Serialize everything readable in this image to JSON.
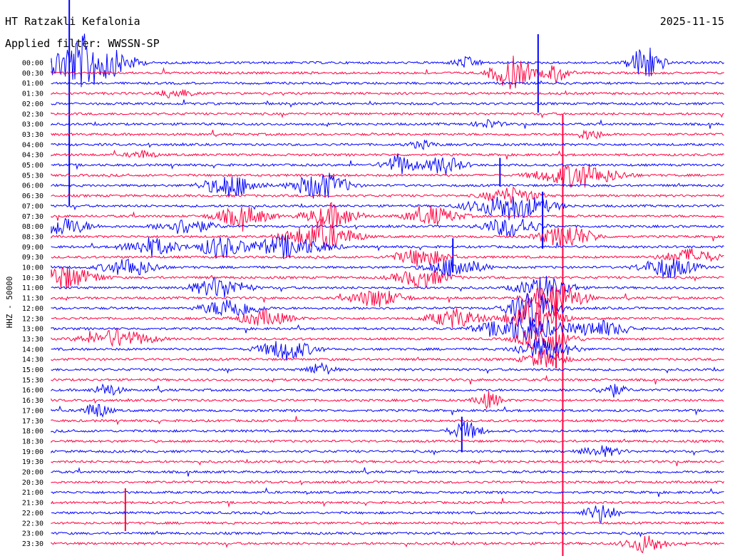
{
  "header": {
    "station": "HT Ratzakli Kefalonia",
    "date": "2025-11-15",
    "filter": "Applied filter: WWSSN-SP"
  },
  "channel_label": "HHZ - 50000",
  "colors": {
    "line_a": "#0000ff",
    "line_b": "#ff0040",
    "text": "#000000",
    "background": "#ffffff"
  },
  "chart_data": {
    "type": "line",
    "title": "HT Ratzakli Kefalonia",
    "ylabel": "HHZ - 50000",
    "rows": [
      "00:00",
      "00:30",
      "01:00",
      "01:30",
      "02:00",
      "02:30",
      "03:00",
      "03:30",
      "04:00",
      "04:30",
      "05:00",
      "05:30",
      "06:00",
      "06:30",
      "07:00",
      "07:30",
      "08:00",
      "08:30",
      "09:00",
      "09:30",
      "10:00",
      "10:30",
      "11:00",
      "11:30",
      "12:00",
      "12:30",
      "13:00",
      "13:30",
      "14:00",
      "14:30",
      "15:00",
      "15:30",
      "16:00",
      "16:30",
      "17:00",
      "17:30",
      "18:00",
      "18:30",
      "19:00",
      "19:30",
      "20:00",
      "20:30",
      "21:00",
      "21:30",
      "22:00",
      "22:30",
      "23:00",
      "23:30"
    ],
    "row_minutes": 30,
    "events": [
      {
        "row": 0,
        "minute": 1.5,
        "amp": 40,
        "dur": 3
      },
      {
        "row": 0,
        "minute": 18.5,
        "amp": 8,
        "dur": 1
      },
      {
        "row": 0,
        "minute": 26.5,
        "amp": 30,
        "dur": 1.2
      },
      {
        "row": 1,
        "minute": 20.5,
        "amp": 25,
        "dur": 1.5
      },
      {
        "row": 1,
        "minute": 22.5,
        "amp": 14,
        "dur": 1
      },
      {
        "row": 3,
        "minute": 5.5,
        "amp": 8,
        "dur": 1.2
      },
      {
        "row": 6,
        "minute": 19.5,
        "amp": 6,
        "dur": 1
      },
      {
        "row": 7,
        "minute": 24.0,
        "amp": 8,
        "dur": 1
      },
      {
        "row": 8,
        "minute": 16.5,
        "amp": 6,
        "dur": 1
      },
      {
        "row": 9,
        "minute": 4.0,
        "amp": 6,
        "dur": 1
      },
      {
        "row": 10,
        "minute": 15.5,
        "amp": 16,
        "dur": 1.2
      },
      {
        "row": 10,
        "minute": 17.5,
        "amp": 14,
        "dur": 1.5
      },
      {
        "row": 11,
        "minute": 23.5,
        "amp": 18,
        "dur": 3
      },
      {
        "row": 12,
        "minute": 8.0,
        "amp": 18,
        "dur": 2
      },
      {
        "row": 12,
        "minute": 12.0,
        "amp": 22,
        "dur": 2
      },
      {
        "row": 13,
        "minute": 20.5,
        "amp": 12,
        "dur": 2
      },
      {
        "row": 14,
        "minute": 20.5,
        "amp": 20,
        "dur": 3
      },
      {
        "row": 15,
        "minute": 8.5,
        "amp": 16,
        "dur": 2
      },
      {
        "row": 15,
        "minute": 12.5,
        "amp": 18,
        "dur": 2
      },
      {
        "row": 15,
        "minute": 17.0,
        "amp": 14,
        "dur": 2
      },
      {
        "row": 16,
        "minute": 0.5,
        "amp": 14,
        "dur": 2
      },
      {
        "row": 16,
        "minute": 6.0,
        "amp": 12,
        "dur": 2
      },
      {
        "row": 16,
        "minute": 20.5,
        "amp": 16,
        "dur": 2
      },
      {
        "row": 17,
        "minute": 12.0,
        "amp": 22,
        "dur": 2.5
      },
      {
        "row": 17,
        "minute": 23.0,
        "amp": 18,
        "dur": 2
      },
      {
        "row": 18,
        "minute": 4.5,
        "amp": 14,
        "dur": 2
      },
      {
        "row": 18,
        "minute": 10.5,
        "amp": 16,
        "dur": 3
      },
      {
        "row": 18,
        "minute": 7.5,
        "amp": 18,
        "dur": 1.5
      },
      {
        "row": 19,
        "minute": 16.5,
        "amp": 14,
        "dur": 2
      },
      {
        "row": 19,
        "minute": 28.5,
        "amp": 12,
        "dur": 2
      },
      {
        "row": 20,
        "minute": 3.5,
        "amp": 14,
        "dur": 2
      },
      {
        "row": 20,
        "minute": 18.0,
        "amp": 16,
        "dur": 2
      },
      {
        "row": 20,
        "minute": 27.5,
        "amp": 16,
        "dur": 2
      },
      {
        "row": 21,
        "minute": 0.5,
        "amp": 18,
        "dur": 2.5
      },
      {
        "row": 21,
        "minute": 16.5,
        "amp": 14,
        "dur": 2
      },
      {
        "row": 22,
        "minute": 7.5,
        "amp": 16,
        "dur": 2
      },
      {
        "row": 22,
        "minute": 22.0,
        "amp": 18,
        "dur": 2
      },
      {
        "row": 23,
        "minute": 14.5,
        "amp": 14,
        "dur": 2
      },
      {
        "row": 23,
        "minute": 22.5,
        "amp": 26,
        "dur": 2
      },
      {
        "row": 24,
        "minute": 8.0,
        "amp": 16,
        "dur": 2
      },
      {
        "row": 24,
        "minute": 21.5,
        "amp": 24,
        "dur": 2
      },
      {
        "row": 25,
        "minute": 9.5,
        "amp": 12,
        "dur": 2
      },
      {
        "row": 25,
        "minute": 18.0,
        "amp": 14,
        "dur": 2
      },
      {
        "row": 25,
        "minute": 21.5,
        "amp": 26,
        "dur": 2
      },
      {
        "row": 26,
        "minute": 21.0,
        "amp": 20,
        "dur": 3
      },
      {
        "row": 26,
        "minute": 24.5,
        "amp": 12,
        "dur": 2
      },
      {
        "row": 27,
        "minute": 3.0,
        "amp": 14,
        "dur": 2.5
      },
      {
        "row": 27,
        "minute": 22.0,
        "amp": 20,
        "dur": 2
      },
      {
        "row": 28,
        "minute": 10.5,
        "amp": 16,
        "dur": 2
      },
      {
        "row": 28,
        "minute": 22.0,
        "amp": 18,
        "dur": 2
      },
      {
        "row": 29,
        "minute": 22.0,
        "amp": 14,
        "dur": 1.5
      },
      {
        "row": 30,
        "minute": 12.0,
        "amp": 10,
        "dur": 1
      },
      {
        "row": 32,
        "minute": 2.5,
        "amp": 10,
        "dur": 1
      },
      {
        "row": 32,
        "minute": 25.0,
        "amp": 10,
        "dur": 1
      },
      {
        "row": 33,
        "minute": 19.5,
        "amp": 12,
        "dur": 1
      },
      {
        "row": 34,
        "minute": 2.0,
        "amp": 12,
        "dur": 1
      },
      {
        "row": 36,
        "minute": 18.5,
        "amp": 14,
        "dur": 1.2
      },
      {
        "row": 38,
        "minute": 24.5,
        "amp": 8,
        "dur": 1.5
      },
      {
        "row": 44,
        "minute": 24.5,
        "amp": 14,
        "dur": 1.2
      },
      {
        "row": 47,
        "minute": 26.5,
        "amp": 14,
        "dur": 1.5
      }
    ],
    "spikes": [
      {
        "row": 0,
        "minute": 0.8,
        "up": 90,
        "down": 200
      },
      {
        "row": 0,
        "minute": 21.7,
        "up": 40,
        "down": 70
      },
      {
        "row": 5,
        "minute": 22.8,
        "up": 0,
        "down": 690
      },
      {
        "row": 10,
        "minute": 20.0,
        "up": 10,
        "down": 30
      },
      {
        "row": 14,
        "minute": 21.9,
        "up": 20,
        "down": 60
      },
      {
        "row": 18,
        "minute": 17.9,
        "up": 12,
        "down": 36
      },
      {
        "row": 25,
        "minute": 22.5,
        "up": 40,
        "down": 70
      },
      {
        "row": 36,
        "minute": 18.3,
        "up": 20,
        "down": 30
      },
      {
        "row": 43,
        "minute": 3.3,
        "up": 20,
        "down": 40
      }
    ]
  }
}
